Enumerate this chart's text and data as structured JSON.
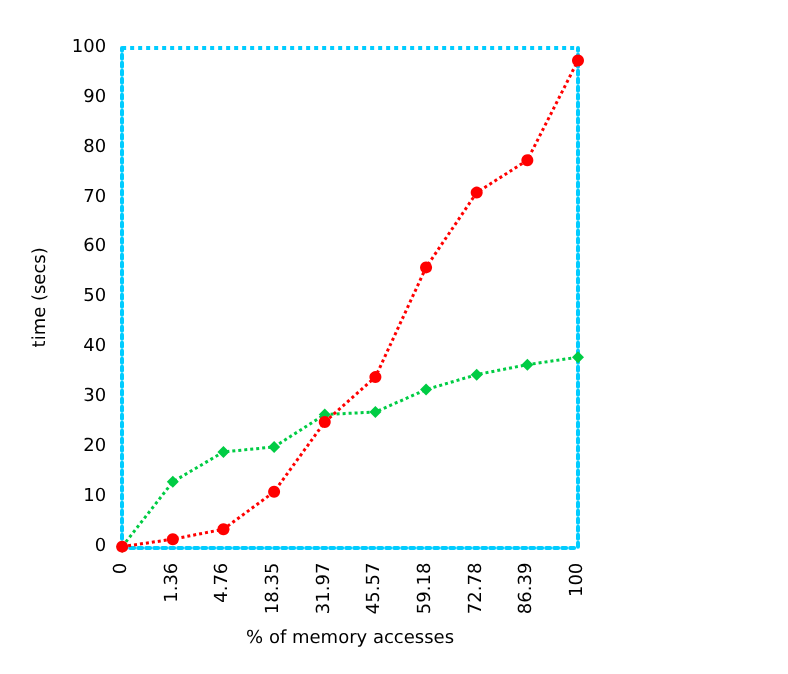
{
  "chart_data": {
    "type": "line",
    "xlabel": "% of memory accesses",
    "ylabel": "time (secs)",
    "categories": [
      "0",
      "1.36",
      "4.76",
      "18.35",
      "31.97",
      "45.57",
      "59.18",
      "72.78",
      "86.39",
      "100"
    ],
    "series": [
      {
        "color": "#00cc44",
        "marker": "diamond",
        "values": [
          0,
          13,
          19,
          20,
          26.5,
          27,
          31.5,
          34.5,
          36.5,
          38
        ]
      },
      {
        "color": "#ff0000",
        "marker": "circle",
        "values": [
          0,
          1.5,
          3.5,
          11,
          25,
          34,
          56,
          71,
          77.5,
          97.5
        ]
      }
    ],
    "ylim": [
      0,
      100
    ],
    "yticks": [
      0,
      10,
      20,
      30,
      40,
      50,
      60,
      70,
      80,
      90,
      100
    ],
    "grid": false,
    "line_style": "dotted"
  }
}
